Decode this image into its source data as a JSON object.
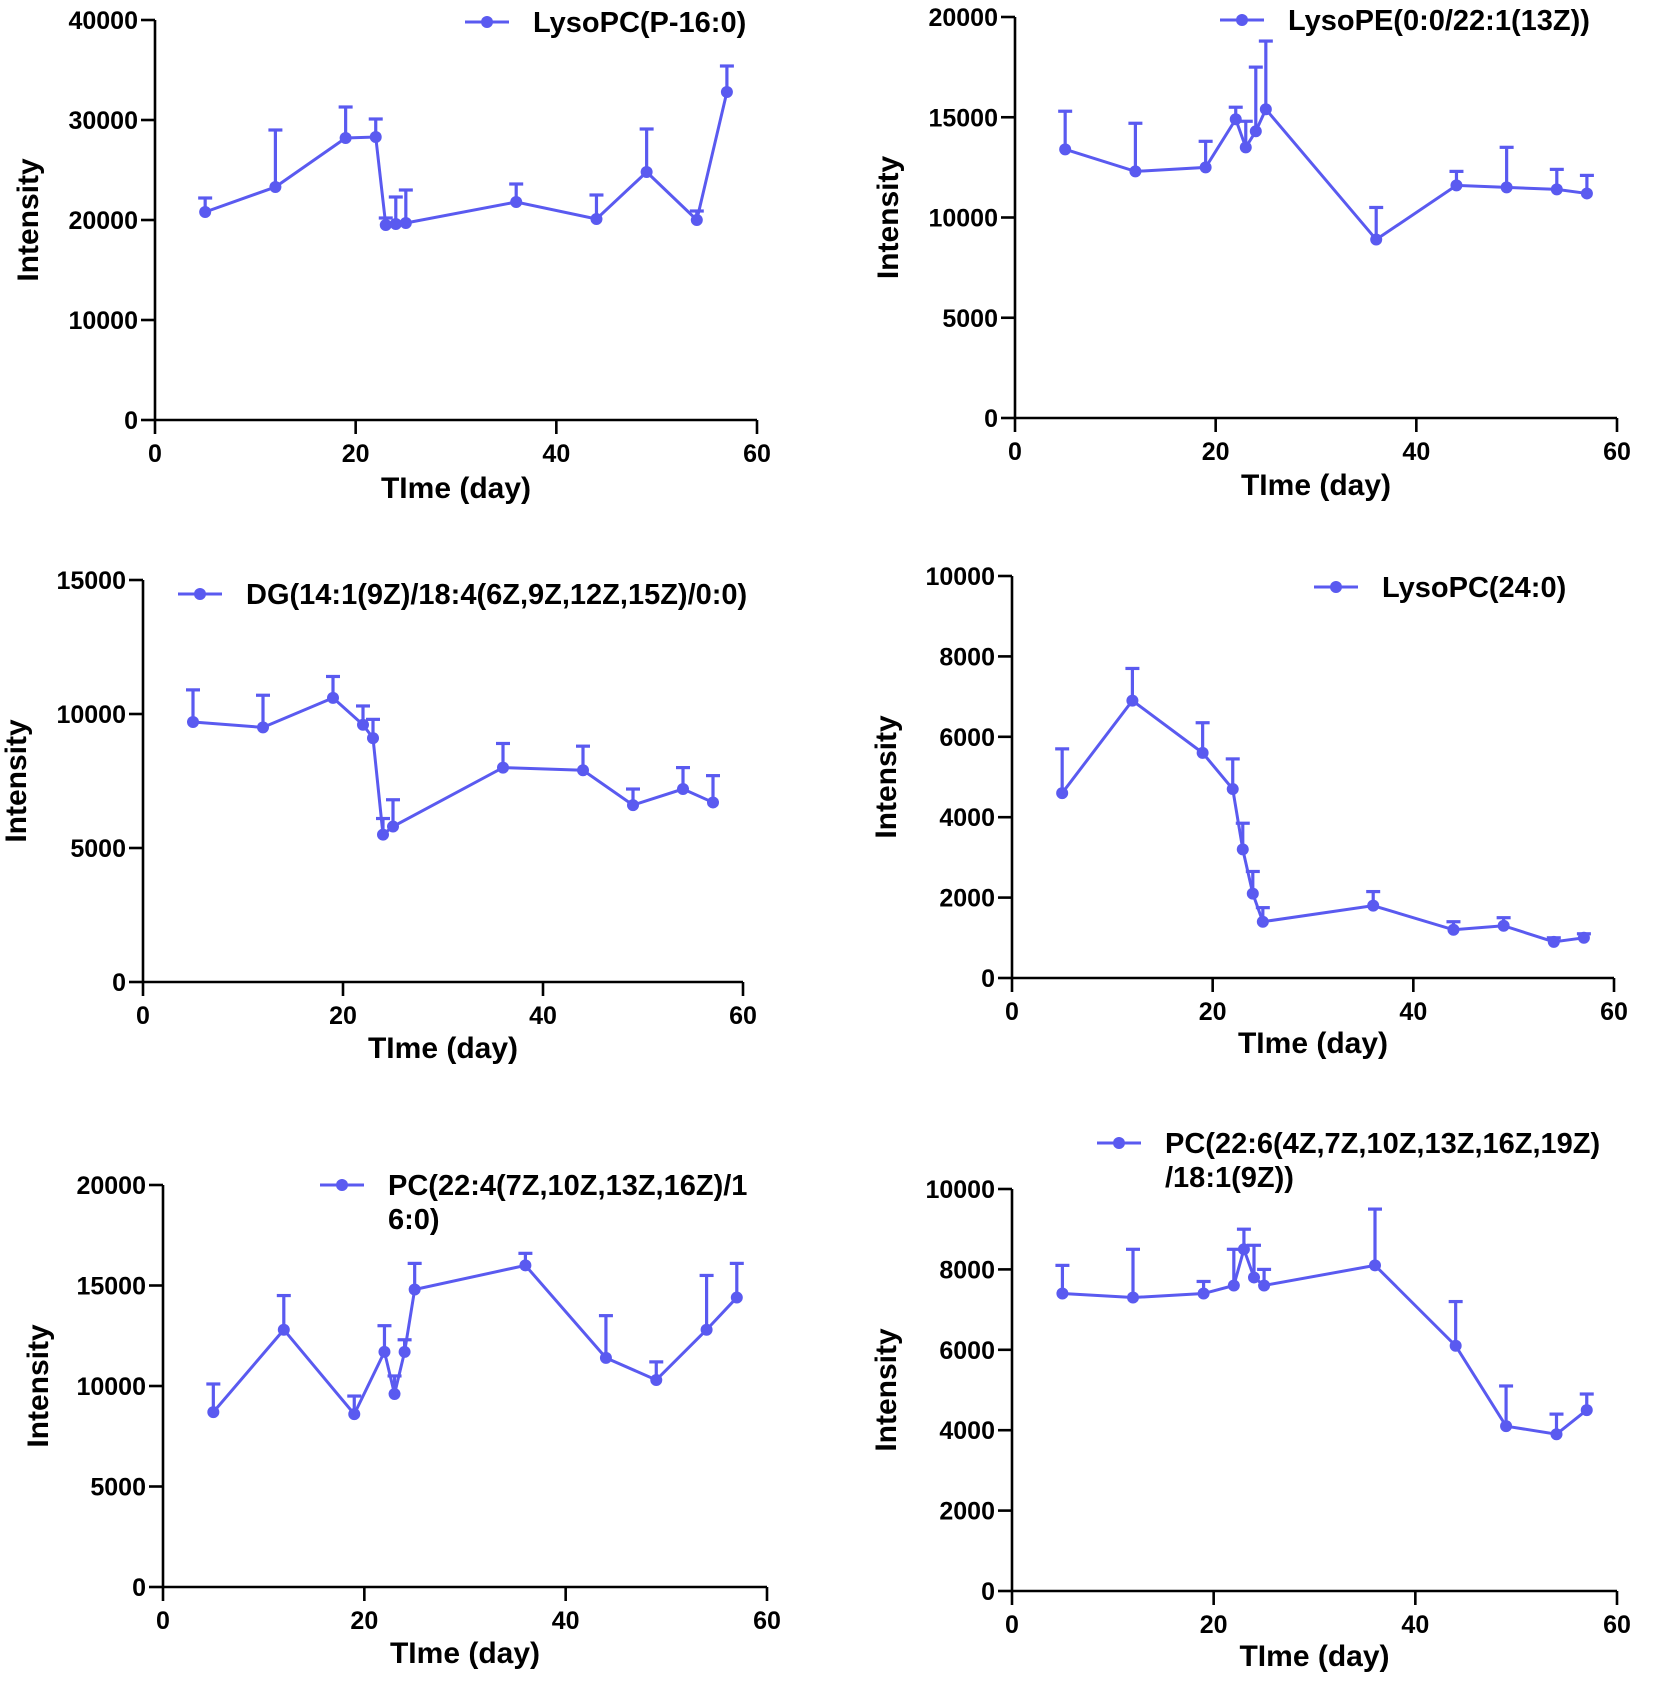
{
  "figure": {
    "series_color": "#5a5af0",
    "axis_color": "#000000"
  },
  "chart_data": [
    {
      "type": "line",
      "title": "",
      "legend": [
        "LysoPC(P-16:0)"
      ],
      "legend_position": "top-right",
      "xlabel": "TIme (day)",
      "ylabel": "Intensity",
      "xlim": [
        0,
        60
      ],
      "ylim": [
        0,
        40000
      ],
      "xticks": [
        "0",
        "20",
        "40",
        "60"
      ],
      "yticks": [
        "0",
        "10000",
        "20000",
        "30000",
        "40000"
      ],
      "x": [
        5,
        12,
        19,
        22,
        23,
        24,
        25,
        36,
        44,
        49,
        54,
        57
      ],
      "values": [
        20800,
        23300,
        28200,
        28300,
        19500,
        19600,
        19700,
        21800,
        20100,
        24800,
        20000,
        32800
      ],
      "errors": [
        1400,
        5700,
        3100,
        1800,
        700,
        2700,
        3300,
        1800,
        2400,
        4300,
        900,
        2600
      ]
    },
    {
      "type": "line",
      "title": "",
      "legend": [
        "LysoPE(0:0/22:1(13Z))"
      ],
      "legend_position": "top-right",
      "xlabel": "TIme (day)",
      "ylabel": "Intensity",
      "xlim": [
        0,
        60
      ],
      "ylim": [
        0,
        20000
      ],
      "xticks": [
        "0",
        "20",
        "40",
        "60"
      ],
      "yticks": [
        "0",
        "5000",
        "10000",
        "15000",
        "20000"
      ],
      "x": [
        5,
        12,
        19,
        22,
        23,
        24,
        25,
        36,
        44,
        49,
        54,
        57
      ],
      "values": [
        13400,
        12300,
        12500,
        14900,
        13500,
        14300,
        15400,
        8900,
        11600,
        11500,
        11400,
        11200
      ],
      "errors": [
        1900,
        2400,
        1300,
        600,
        1300,
        3200,
        3400,
        1600,
        700,
        2000,
        1000,
        900
      ]
    },
    {
      "type": "line",
      "title": "",
      "legend": [
        "DG(14:1(9Z)/18:4(6Z,9Z,12Z,15Z)/0:0)"
      ],
      "legend_position": "top-right",
      "xlabel": "TIme (day)",
      "ylabel": "Intensity",
      "xlim": [
        0,
        60
      ],
      "ylim": [
        0,
        15000
      ],
      "xticks": [
        "0",
        "20",
        "40",
        "60"
      ],
      "yticks": [
        "0",
        "5000",
        "10000",
        "15000"
      ],
      "x": [
        5,
        12,
        19,
        22,
        23,
        24,
        25,
        36,
        44,
        49,
        54,
        57
      ],
      "values": [
        9700,
        9500,
        10600,
        9600,
        9100,
        5500,
        5800,
        8000,
        7900,
        6600,
        7200,
        6700
      ],
      "errors": [
        1200,
        1200,
        800,
        700,
        700,
        600,
        1000,
        900,
        900,
        600,
        800,
        1000
      ]
    },
    {
      "type": "line",
      "title": "",
      "legend": [
        "LysoPC(24:0)"
      ],
      "legend_position": "top-right",
      "xlabel": "TIme (day)",
      "ylabel": "Intensity",
      "xlim": [
        0,
        60
      ],
      "ylim": [
        0,
        10000
      ],
      "xticks": [
        "0",
        "20",
        "40",
        "60"
      ],
      "yticks": [
        "0",
        "2000",
        "4000",
        "6000",
        "8000",
        "10000"
      ],
      "x": [
        5,
        12,
        19,
        22,
        23,
        24,
        25,
        36,
        44,
        49,
        54,
        57
      ],
      "values": [
        4600,
        6900,
        5600,
        4700,
        3200,
        2100,
        1400,
        1800,
        1200,
        1300,
        900,
        1000
      ],
      "errors": [
        1100,
        800,
        750,
        750,
        650,
        550,
        350,
        350,
        200,
        200,
        100,
        100
      ]
    },
    {
      "type": "line",
      "title": "",
      "legend": [
        "PC(22:4(7Z,10Z,13Z,16Z)/16:0)"
      ],
      "legend_lines": [
        "PC(22:4(7Z,10Z,13Z,16Z)/1",
        "6:0)"
      ],
      "legend_position": "top-right",
      "xlabel": "TIme (day)",
      "ylabel": "Intensity",
      "xlim": [
        0,
        60
      ],
      "ylim": [
        0,
        20000
      ],
      "xticks": [
        "0",
        "20",
        "40",
        "60"
      ],
      "yticks": [
        "0",
        "5000",
        "10000",
        "15000",
        "20000"
      ],
      "x": [
        5,
        12,
        19,
        22,
        23,
        24,
        25,
        36,
        44,
        49,
        54,
        57
      ],
      "values": [
        8700,
        12800,
        8600,
        11700,
        9600,
        11700,
        14800,
        16000,
        11400,
        10300,
        12800,
        14400
      ],
      "errors": [
        1400,
        1700,
        900,
        1300,
        900,
        600,
        1300,
        600,
        2100,
        900,
        2700,
        1700
      ]
    },
    {
      "type": "line",
      "title": "",
      "legend": [
        "PC(22:6(4Z,7Z,10Z,13Z,16Z,19Z)/18:1(9Z))"
      ],
      "legend_lines": [
        "PC(22:6(4Z,7Z,10Z,13Z,16Z,19Z)",
        "/18:1(9Z))"
      ],
      "legend_position": "top-right",
      "xlabel": "TIme (day)",
      "ylabel": "Intensity",
      "xlim": [
        0,
        60
      ],
      "ylim": [
        0,
        10000
      ],
      "xticks": [
        "0",
        "20",
        "40",
        "60"
      ],
      "yticks": [
        "0",
        "2000",
        "4000",
        "6000",
        "8000",
        "10000"
      ],
      "x": [
        5,
        12,
        19,
        22,
        23,
        24,
        25,
        36,
        44,
        49,
        54,
        57
      ],
      "values": [
        7400,
        7300,
        7400,
        7600,
        8500,
        7800,
        7600,
        8100,
        6100,
        4100,
        3900,
        4500
      ],
      "errors": [
        700,
        1200,
        300,
        900,
        500,
        800,
        400,
        1400,
        1100,
        1000,
        500,
        400
      ]
    }
  ]
}
